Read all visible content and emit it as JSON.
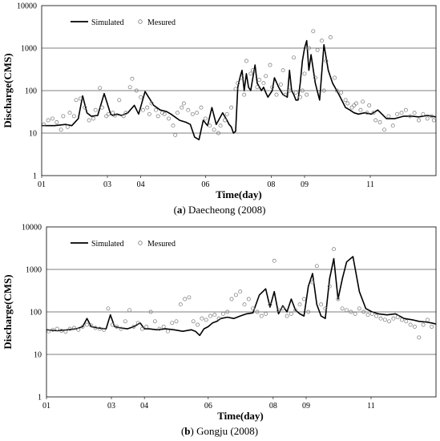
{
  "chart_data": [
    {
      "type": "line",
      "panel": "a",
      "caption_label": "a",
      "caption_text": "Daecheong (2008)",
      "ylabel": "Discharge(CMS)",
      "xlabel": "Time(day)",
      "y_scale": "log",
      "ylim": [
        1,
        10000
      ],
      "y_ticks": [
        "1",
        "10",
        "100",
        "1000",
        "10000"
      ],
      "x_ticks": [
        "01",
        "03",
        "04",
        "06",
        "08",
        "09",
        "11"
      ],
      "grid": "horizontal major gridlines",
      "legend": "top-left",
      "series": [
        {
          "name": "Simulated",
          "style": "line",
          "color": "#000000",
          "x": [
            0,
            12,
            22,
            28,
            34,
            38,
            42,
            46,
            52,
            58,
            64,
            66,
            70,
            74,
            80,
            86,
            90,
            96,
            104,
            110,
            116,
            120,
            128,
            134,
            138,
            142,
            146,
            150,
            154,
            158,
            162,
            168,
            172,
            174,
            176,
            178,
            180,
            182,
            184,
            186,
            188,
            190,
            192,
            194,
            196,
            198,
            200,
            204,
            206,
            208,
            210,
            214,
            216,
            220,
            224,
            228,
            230,
            232,
            234,
            236,
            238,
            240,
            242,
            244,
            246,
            248,
            250,
            254,
            258,
            262,
            266,
            270,
            276,
            282,
            286,
            290,
            294,
            300,
            306,
            312,
            320,
            328,
            336,
            344,
            350,
            358,
            366
          ],
          "values": [
            15,
            15,
            16,
            15,
            22,
            75,
            30,
            25,
            26,
            85,
            28,
            26,
            28,
            26,
            30,
            45,
            28,
            95,
            45,
            35,
            32,
            28,
            20,
            18,
            16,
            8,
            7,
            20,
            15,
            40,
            16,
            30,
            20,
            16,
            14,
            10,
            11,
            120,
            200,
            300,
            100,
            250,
            120,
            100,
            200,
            400,
            150,
            100,
            120,
            90,
            70,
            100,
            200,
            120,
            80,
            70,
            300,
            100,
            80,
            60,
            60,
            150,
            500,
            1000,
            1500,
            300,
            700,
            150,
            60,
            1200,
            300,
            150,
            80,
            40,
            35,
            30,
            28,
            30,
            28,
            35,
            22,
            22,
            25,
            25,
            24,
            26,
            24
          ]
        },
        {
          "name": "Mesured",
          "style": "markers",
          "color": "#777777",
          "x": [
            2,
            6,
            10,
            14,
            18,
            20,
            24,
            26,
            30,
            32,
            36,
            40,
            44,
            48,
            50,
            54,
            56,
            60,
            62,
            66,
            68,
            72,
            76,
            78,
            82,
            84,
            88,
            92,
            94,
            98,
            100,
            102,
            106,
            108,
            112,
            114,
            118,
            122,
            124,
            126,
            130,
            132,
            136,
            140,
            144,
            148,
            152,
            156,
            160,
            164,
            166,
            170,
            172,
            176,
            180,
            182,
            186,
            188,
            190,
            194,
            196,
            200,
            202,
            206,
            208,
            212,
            214,
            218,
            222,
            224,
            226,
            230,
            234,
            236,
            240,
            242,
            244,
            246,
            248,
            252,
            254,
            256,
            260,
            262,
            264,
            268,
            272,
            274,
            278,
            282,
            284,
            288,
            290,
            292,
            296,
            298,
            302,
            304,
            308,
            310,
            314,
            318,
            322,
            326,
            330,
            334,
            338,
            342,
            346,
            350,
            354,
            358,
            362,
            364
          ],
          "values": [
            16,
            20,
            22,
            18,
            12,
            25,
            14,
            30,
            25,
            60,
            65,
            40,
            20,
            22,
            35,
            115,
            40,
            25,
            28,
            30,
            26,
            60,
            25,
            30,
            120,
            190,
            100,
            70,
            35,
            40,
            28,
            50,
            35,
            25,
            30,
            28,
            22,
            15,
            9,
            30,
            40,
            50,
            35,
            28,
            30,
            40,
            22,
            15,
            12,
            10,
            15,
            20,
            28,
            40,
            110,
            150,
            200,
            80,
            500,
            250,
            300,
            120,
            180,
            150,
            220,
            400,
            120,
            80,
            140,
            300,
            80,
            100,
            600,
            90,
            70,
            100,
            250,
            80,
            1000,
            2500,
            200,
            900,
            1500,
            100,
            500,
            1800,
            200,
            100,
            90,
            60,
            50,
            40,
            45,
            50,
            35,
            55,
            30,
            45,
            30,
            20,
            18,
            12,
            25,
            15,
            28,
            30,
            35,
            25,
            30,
            20,
            28,
            22,
            25,
            20
          ]
        }
      ]
    },
    {
      "type": "line",
      "panel": "b",
      "caption_label": "b",
      "caption_text": "Gongju (2008)",
      "ylabel": "Discharge(CMS)",
      "xlabel": "Time(day)",
      "y_scale": "log",
      "ylim": [
        1,
        10000
      ],
      "y_ticks": [
        "1",
        "10",
        "100",
        "1000",
        "10000"
      ],
      "x_ticks": [
        "01",
        "03",
        "04",
        "06",
        "08",
        "09",
        "11"
      ],
      "grid": "horizontal major gridlines",
      "legend": "top-left",
      "series": [
        {
          "name": "Simulated",
          "style": "line",
          "color": "#000000",
          "x": [
            0,
            10,
            20,
            28,
            34,
            38,
            42,
            48,
            56,
            60,
            64,
            70,
            76,
            82,
            88,
            92,
            96,
            104,
            112,
            120,
            128,
            136,
            140,
            144,
            148,
            152,
            156,
            160,
            164,
            170,
            176,
            182,
            188,
            194,
            200,
            206,
            210,
            214,
            218,
            222,
            226,
            230,
            234,
            238,
            242,
            246,
            250,
            254,
            258,
            262,
            266,
            270,
            274,
            278,
            282,
            288,
            294,
            300,
            306,
            312,
            320,
            328,
            336,
            344,
            350,
            356,
            362,
            366
          ],
          "values": [
            38,
            36,
            38,
            40,
            45,
            70,
            45,
            42,
            40,
            85,
            45,
            42,
            40,
            45,
            55,
            40,
            40,
            38,
            40,
            38,
            35,
            38,
            35,
            28,
            40,
            45,
            55,
            60,
            70,
            75,
            70,
            80,
            90,
            95,
            250,
            350,
            130,
            300,
            90,
            140,
            100,
            200,
            110,
            90,
            80,
            400,
            800,
            150,
            80,
            70,
            600,
            1800,
            200,
            600,
            1500,
            2000,
            300,
            120,
            100,
            90,
            85,
            90,
            70,
            65,
            60,
            58,
            55,
            52
          ]
        },
        {
          "name": "Mesured",
          "style": "markers",
          "color": "#777777",
          "x": [
            2,
            6,
            10,
            14,
            18,
            22,
            26,
            30,
            34,
            38,
            42,
            46,
            50,
            54,
            58,
            62,
            66,
            70,
            74,
            78,
            82,
            86,
            90,
            94,
            98,
            102,
            106,
            110,
            114,
            118,
            122,
            126,
            130,
            134,
            138,
            142,
            146,
            150,
            154,
            158,
            162,
            166,
            170,
            174,
            178,
            182,
            186,
            190,
            194,
            198,
            202,
            206,
            210,
            214,
            218,
            222,
            226,
            230,
            234,
            238,
            242,
            246,
            250,
            254,
            258,
            262,
            266,
            270,
            274,
            278,
            282,
            286,
            290,
            294,
            298,
            302,
            306,
            310,
            314,
            318,
            322,
            326,
            330,
            334,
            338,
            342,
            346,
            350,
            354,
            358,
            362
          ],
          "values": [
            35,
            38,
            40,
            36,
            34,
            40,
            42,
            38,
            45,
            50,
            48,
            42,
            40,
            38,
            120,
            50,
            45,
            40,
            60,
            110,
            45,
            55,
            40,
            45,
            100,
            60,
            40,
            45,
            35,
            55,
            60,
            150,
            200,
            220,
            60,
            50,
            70,
            65,
            80,
            85,
            70,
            90,
            100,
            200,
            250,
            300,
            150,
            200,
            120,
            100,
            80,
            90,
            150,
            1600,
            110,
            120,
            80,
            90,
            110,
            150,
            200,
            100,
            500,
            1200,
            150,
            120,
            400,
            3000,
            200,
            120,
            110,
            100,
            90,
            120,
            100,
            85,
            90,
            80,
            70,
            65,
            60,
            70,
            75,
            65,
            60,
            50,
            45,
            25,
            50,
            65,
            45
          ]
        }
      ]
    }
  ]
}
